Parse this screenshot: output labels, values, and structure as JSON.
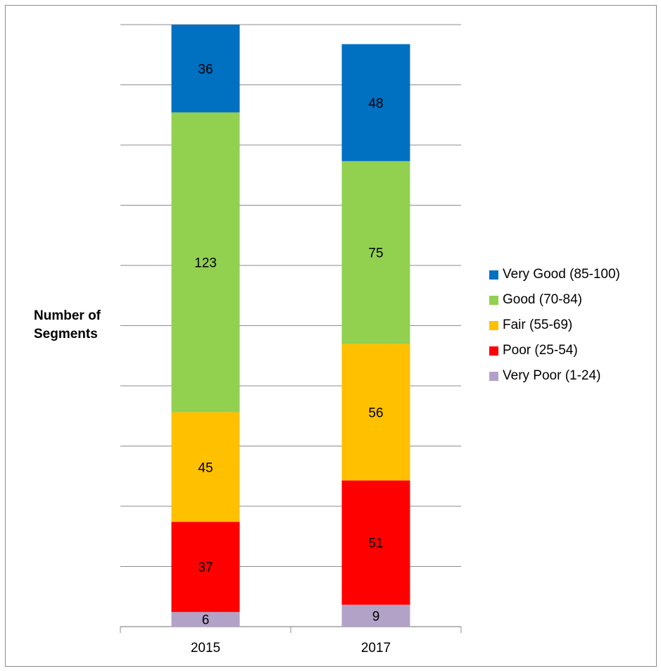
{
  "chart_data": {
    "type": "bar",
    "stacked": true,
    "categories": [
      "2015",
      "2017"
    ],
    "series": [
      {
        "name": "Very Poor (1-24)",
        "color": "#b3a2c7",
        "values": [
          6,
          9
        ]
      },
      {
        "name": "Poor (25-54)",
        "color": "#ff0000",
        "values": [
          37,
          51
        ]
      },
      {
        "name": "Fair (55-69)",
        "color": "#ffc000",
        "values": [
          45,
          56
        ]
      },
      {
        "name": "Good (70-84)",
        "color": "#92d050",
        "values": [
          123,
          75
        ]
      },
      {
        "name": "Very Good (85-100)",
        "color": "#0070c0",
        "values": [
          36,
          48
        ]
      }
    ],
    "ylabel": "Number of Segments",
    "xlabel": "",
    "title": "",
    "ylim": [
      0,
      247
    ],
    "grid": true,
    "legend_position": "right",
    "legend_order": [
      "Very Good (85-100)",
      "Good (70-84)",
      "Fair (55-69)",
      "Poor (25-54)",
      "Very Poor (1-24)"
    ],
    "data_labels": true
  }
}
